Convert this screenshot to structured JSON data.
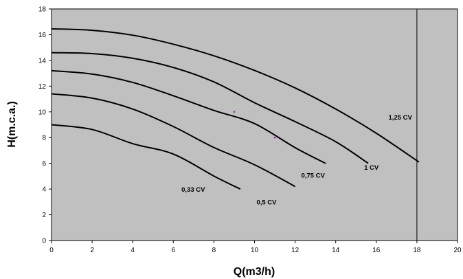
{
  "chart_data": {
    "type": "line",
    "title": "",
    "xlabel": "Q(m3/h)",
    "ylabel": "H(m.c.a.)",
    "xlim": [
      0,
      20
    ],
    "ylim": [
      0,
      18
    ],
    "x_ticks": [
      "0",
      "2",
      "4",
      "6",
      "8",
      "10",
      "12",
      "14",
      "16",
      "18",
      "20"
    ],
    "y_ticks": [
      "0",
      "2",
      "4",
      "6",
      "8",
      "10",
      "12",
      "14",
      "16",
      "18"
    ],
    "grid": false,
    "plot_background": "#c0c0c0",
    "line_color": "#000000",
    "series": [
      {
        "name": "0,33 CV",
        "x": [
          0,
          2,
          4,
          6,
          8,
          9.3
        ],
        "y": [
          9.0,
          8.63,
          7.53,
          6.72,
          5.01,
          4.0
        ]
      },
      {
        "name": "0,5 CV",
        "x": [
          0,
          2,
          4,
          6,
          8,
          10,
          12
        ],
        "y": [
          11.4,
          11.07,
          10.22,
          8.86,
          7.23,
          5.89,
          4.2
        ]
      },
      {
        "name": "0,75 CV",
        "x": [
          0,
          2,
          4,
          6,
          8,
          10,
          12,
          13.5
        ],
        "y": [
          13.2,
          12.94,
          12.29,
          11.25,
          10.11,
          9.09,
          7.22,
          6.0
        ]
      },
      {
        "name": "1 CV",
        "x": [
          0,
          2,
          4,
          6,
          8,
          10,
          12,
          14,
          15.6
        ],
        "y": [
          14.6,
          14.53,
          14.17,
          13.45,
          12.33,
          10.71,
          9.24,
          7.68,
          6.0
        ]
      },
      {
        "name": "1,25 CV",
        "x": [
          0,
          2,
          4,
          6,
          8,
          10,
          12,
          14,
          16,
          18.1
        ],
        "y": [
          16.45,
          16.34,
          15.96,
          15.26,
          14.36,
          13.22,
          11.86,
          10.22,
          8.34,
          6.1
        ]
      }
    ],
    "reference_line": {
      "x": 18
    },
    "markers": [
      {
        "x": 9,
        "y": 10
      },
      {
        "x": 11,
        "y": 8
      },
      {
        "x": 13.5,
        "y": 6
      }
    ],
    "marker_color": "#8a3f9f",
    "labels": [
      {
        "text": "0,33 CV",
        "x": 6.4,
        "y": 3.8
      },
      {
        "text": "0,5 CV",
        "x": 10.1,
        "y": 2.8
      },
      {
        "text": "0,75 CV",
        "x": 12.3,
        "y": 4.9
      },
      {
        "text": "1 CV",
        "x": 15.4,
        "y": 5.5
      },
      {
        "text": "1,25 CV",
        "x": 16.6,
        "y": 9.4
      }
    ]
  }
}
